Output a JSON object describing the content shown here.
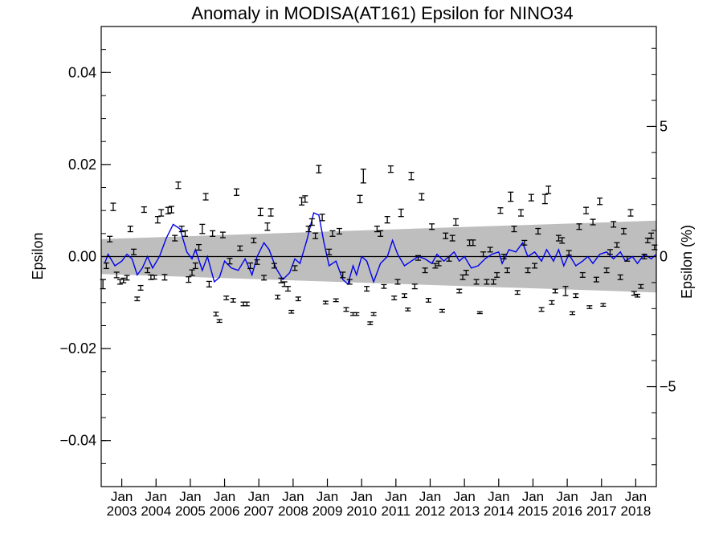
{
  "chart_data": {
    "type": "scatter",
    "title": "Anomaly in MODISA(AT161) Epsilon for NINO34",
    "ylabel": "Epsilon",
    "ylabel_right": "Epsilon (%)",
    "ylim": [
      -0.05,
      0.05
    ],
    "ylim_right": [
      -8.84,
      8.84
    ],
    "yticks": [
      "0.04",
      "0.02",
      "0.00",
      "−0.02",
      "−0.04"
    ],
    "yticks_right": [
      "5",
      "0",
      "−5"
    ],
    "xlim": [
      2002.4,
      2018.6
    ],
    "xticks_month": "Jan",
    "xticks_year": [
      "2003",
      "2004",
      "2005",
      "2006",
      "2007",
      "2008",
      "2009",
      "2010",
      "2011",
      "2012",
      "2013",
      "2014",
      "2015",
      "2016",
      "2017",
      "2018"
    ],
    "zero_line": true,
    "band": {
      "color": "#bebebe",
      "upper": [
        [
          2002.4,
          0.0038
        ],
        [
          2018.6,
          0.0078
        ]
      ],
      "lower": [
        [
          2002.4,
          -0.0038
        ],
        [
          2018.6,
          -0.0078
        ]
      ]
    },
    "smooth_series": {
      "color": "#0000ee",
      "points": [
        [
          2002.5,
          -0.0015
        ],
        [
          2002.6,
          0.0005
        ],
        [
          2002.8,
          -0.002
        ],
        [
          2003.0,
          -0.001
        ],
        [
          2003.15,
          0.0005
        ],
        [
          2003.3,
          -0.0005
        ],
        [
          2003.45,
          -0.004
        ],
        [
          2003.6,
          -0.0025
        ],
        [
          2003.75,
          0.0
        ],
        [
          2003.9,
          -0.0025
        ],
        [
          2004.1,
          0.0
        ],
        [
          2004.3,
          0.004
        ],
        [
          2004.5,
          0.007
        ],
        [
          2004.7,
          0.006
        ],
        [
          2004.9,
          0.001
        ],
        [
          2005.05,
          -0.0005
        ],
        [
          2005.15,
          0.0015
        ],
        [
          2005.35,
          -0.003
        ],
        [
          2005.5,
          0.0
        ],
        [
          2005.7,
          -0.0055
        ],
        [
          2005.85,
          -0.0045
        ],
        [
          2006.0,
          -0.001
        ],
        [
          2006.2,
          -0.0025
        ],
        [
          2006.4,
          -0.003
        ],
        [
          2006.6,
          -0.0005
        ],
        [
          2006.8,
          -0.004
        ],
        [
          2006.95,
          0.0
        ],
        [
          2007.15,
          0.003
        ],
        [
          2007.3,
          0.0015
        ],
        [
          2007.5,
          -0.0025
        ],
        [
          2007.7,
          -0.005
        ],
        [
          2007.9,
          -0.0035
        ],
        [
          2008.05,
          -0.0005
        ],
        [
          2008.2,
          -0.0015
        ],
        [
          2008.4,
          0.0035
        ],
        [
          2008.6,
          0.0095
        ],
        [
          2008.75,
          0.009
        ],
        [
          2008.9,
          0.003
        ],
        [
          2009.05,
          -0.002
        ],
        [
          2009.25,
          -0.001
        ],
        [
          2009.45,
          -0.005
        ],
        [
          2009.6,
          -0.006
        ],
        [
          2009.75,
          -0.002
        ],
        [
          2009.85,
          -0.004
        ],
        [
          2010.0,
          0.0
        ],
        [
          2010.15,
          -0.001
        ],
        [
          2010.35,
          -0.0055
        ],
        [
          2010.55,
          -0.0015
        ],
        [
          2010.75,
          0.0
        ],
        [
          2010.9,
          0.0035
        ],
        [
          2011.05,
          0.0005
        ],
        [
          2011.25,
          -0.002
        ],
        [
          2011.45,
          -0.001
        ],
        [
          2011.65,
          0.0
        ],
        [
          2011.85,
          -0.0005
        ],
        [
          2012.05,
          -0.0015
        ],
        [
          2012.2,
          0.0005
        ],
        [
          2012.4,
          -0.001
        ],
        [
          2012.55,
          0.0
        ],
        [
          2012.7,
          0.001
        ],
        [
          2012.85,
          -0.001
        ],
        [
          2013.0,
          0.0
        ],
        [
          2013.2,
          -0.0025
        ],
        [
          2013.4,
          -0.002
        ],
        [
          2013.6,
          -0.0005
        ],
        [
          2013.8,
          0.0005
        ],
        [
          2014.0,
          0.001
        ],
        [
          2014.1,
          -0.0015
        ],
        [
          2014.3,
          0.0015
        ],
        [
          2014.5,
          0.001
        ],
        [
          2014.7,
          0.003
        ],
        [
          2014.85,
          0.0
        ],
        [
          2015.05,
          0.001
        ],
        [
          2015.25,
          -0.001
        ],
        [
          2015.4,
          0.0015
        ],
        [
          2015.6,
          -0.001
        ],
        [
          2015.75,
          0.0015
        ],
        [
          2015.9,
          -0.002
        ],
        [
          2016.05,
          0.0005
        ],
        [
          2016.25,
          -0.002
        ],
        [
          2016.45,
          -0.001
        ],
        [
          2016.6,
          0.0
        ],
        [
          2016.75,
          -0.0015
        ],
        [
          2016.95,
          0.0005
        ],
        [
          2017.15,
          0.001
        ],
        [
          2017.35,
          -0.0005
        ],
        [
          2017.55,
          0.001
        ],
        [
          2017.7,
          -0.001
        ],
        [
          2017.9,
          0.0
        ],
        [
          2018.05,
          -0.0015
        ],
        [
          2018.25,
          0.0005
        ],
        [
          2018.45,
          -0.0005
        ],
        [
          2018.6,
          0.0005
        ]
      ]
    },
    "errorbar_series": {
      "color": "#000000",
      "points": [
        [
          2002.45,
          -0.006,
          0.001
        ],
        [
          2002.55,
          -0.002,
          0.0006
        ],
        [
          2002.65,
          0.0038,
          0.0006
        ],
        [
          2002.75,
          0.0108,
          0.0008
        ],
        [
          2002.85,
          -0.004,
          0.0006
        ],
        [
          2002.95,
          -0.0055,
          0.0005
        ],
        [
          2003.05,
          -0.0052,
          0.0005
        ],
        [
          2003.15,
          -0.0046,
          0.0005
        ],
        [
          2003.25,
          0.006,
          0.0006
        ],
        [
          2003.35,
          0.001,
          0.0006
        ],
        [
          2003.45,
          -0.0092,
          0.0004
        ],
        [
          2003.55,
          -0.0068,
          0.0005
        ],
        [
          2003.65,
          0.0102,
          0.0006
        ],
        [
          2003.75,
          -0.003,
          0.0005
        ],
        [
          2003.85,
          -0.0045,
          0.0005
        ],
        [
          2003.95,
          -0.0045,
          0.0004
        ],
        [
          2004.05,
          0.008,
          0.0007
        ],
        [
          2004.15,
          0.0095,
          0.0007
        ],
        [
          2004.25,
          -0.0045,
          0.0006
        ],
        [
          2004.35,
          0.01,
          0.0007
        ],
        [
          2004.45,
          0.0102,
          0.0007
        ],
        [
          2004.55,
          0.004,
          0.0006
        ],
        [
          2004.65,
          0.0155,
          0.0007
        ],
        [
          2004.75,
          0.006,
          0.0006
        ],
        [
          2004.85,
          0.005,
          0.0006
        ],
        [
          2004.95,
          -0.005,
          0.0006
        ],
        [
          2005.05,
          -0.0035,
          0.0006
        ],
        [
          2005.15,
          -0.002,
          0.0006
        ],
        [
          2005.25,
          0.002,
          0.0006
        ],
        [
          2005.35,
          0.006,
          0.001
        ],
        [
          2005.45,
          0.013,
          0.0007
        ],
        [
          2005.55,
          -0.006,
          0.0006
        ],
        [
          2005.65,
          0.005,
          0.0006
        ],
        [
          2005.75,
          -0.0125,
          0.0004
        ],
        [
          2005.85,
          -0.014,
          0.0003
        ],
        [
          2005.95,
          0.0047,
          0.0006
        ],
        [
          2006.05,
          -0.009,
          0.0004
        ],
        [
          2006.15,
          -0.001,
          0.0006
        ],
        [
          2006.25,
          -0.0095,
          0.0004
        ],
        [
          2006.35,
          0.014,
          0.0007
        ],
        [
          2006.45,
          0.0018,
          0.0005
        ],
        [
          2006.55,
          -0.0103,
          0.0004
        ],
        [
          2006.65,
          -0.0103,
          0.0004
        ],
        [
          2006.75,
          -0.002,
          0.0006
        ],
        [
          2006.85,
          0.0035,
          0.0005
        ],
        [
          2006.95,
          -0.0012,
          0.0005
        ],
        [
          2007.05,
          0.0097,
          0.0008
        ],
        [
          2007.15,
          -0.0046,
          0.0005
        ],
        [
          2007.25,
          0.0065,
          0.0008
        ],
        [
          2007.35,
          0.0096,
          0.0008
        ],
        [
          2007.45,
          -0.002,
          0.0005
        ],
        [
          2007.55,
          -0.0088,
          0.0004
        ],
        [
          2007.65,
          -0.0052,
          0.0005
        ],
        [
          2007.75,
          -0.006,
          0.0005
        ],
        [
          2007.85,
          -0.007,
          0.0005
        ],
        [
          2007.95,
          -0.012,
          0.0003
        ],
        [
          2008.05,
          -0.0025,
          0.0005
        ],
        [
          2008.15,
          -0.0092,
          0.0004
        ],
        [
          2008.25,
          0.012,
          0.0008
        ],
        [
          2008.35,
          0.0125,
          0.0007
        ],
        [
          2008.45,
          0.006,
          0.0006
        ],
        [
          2008.55,
          0.0075,
          0.0007
        ],
        [
          2008.65,
          0.0045,
          0.0006
        ],
        [
          2008.75,
          0.019,
          0.0008
        ],
        [
          2008.85,
          0.0085,
          0.0007
        ],
        [
          2008.95,
          -0.01,
          0.0003
        ],
        [
          2009.05,
          0.001,
          0.0006
        ],
        [
          2009.15,
          0.005,
          0.0006
        ],
        [
          2009.25,
          -0.0095,
          0.0003
        ],
        [
          2009.35,
          0.0055,
          0.0006
        ],
        [
          2009.45,
          -0.004,
          0.0006
        ],
        [
          2009.55,
          -0.0115,
          0.0004
        ],
        [
          2009.65,
          -0.0055,
          0.0005
        ],
        [
          2009.75,
          -0.0125,
          0.0003
        ],
        [
          2009.85,
          -0.0125,
          0.0003
        ],
        [
          2009.95,
          0.0125,
          0.0008
        ],
        [
          2010.05,
          0.0175,
          0.0015
        ],
        [
          2010.15,
          -0.007,
          0.0005
        ],
        [
          2010.25,
          -0.0145,
          0.0003
        ],
        [
          2010.35,
          -0.0125,
          0.0003
        ],
        [
          2010.45,
          0.006,
          0.0006
        ],
        [
          2010.55,
          0.005,
          0.0006
        ],
        [
          2010.65,
          -0.0065,
          0.0004
        ],
        [
          2010.75,
          0.008,
          0.0007
        ],
        [
          2010.85,
          0.019,
          0.0007
        ],
        [
          2010.95,
          -0.009,
          0.0004
        ],
        [
          2011.05,
          -0.0055,
          0.0005
        ],
        [
          2011.15,
          0.0095,
          0.0008
        ],
        [
          2011.25,
          -0.0085,
          0.0004
        ],
        [
          2011.35,
          -0.0115,
          0.0003
        ],
        [
          2011.45,
          0.0175,
          0.0008
        ],
        [
          2011.55,
          -0.0065,
          0.0005
        ],
        [
          2011.65,
          -0.0003,
          0.0005
        ],
        [
          2011.75,
          0.013,
          0.0007
        ],
        [
          2011.85,
          -0.003,
          0.0005
        ],
        [
          2011.95,
          -0.0095,
          0.0004
        ],
        [
          2012.05,
          0.0065,
          0.0006
        ],
        [
          2012.15,
          -0.002,
          0.0005
        ],
        [
          2012.25,
          -0.0015,
          0.0005
        ],
        [
          2012.35,
          -0.0118,
          0.0003
        ],
        [
          2012.45,
          0.0045,
          0.0006
        ],
        [
          2012.55,
          -0.0005,
          0.0005
        ],
        [
          2012.65,
          0.004,
          0.0006
        ],
        [
          2012.75,
          0.0075,
          0.0007
        ],
        [
          2012.85,
          -0.0075,
          0.0004
        ],
        [
          2012.95,
          -0.0045,
          0.0005
        ],
        [
          2013.05,
          -0.0035,
          0.0005
        ],
        [
          2013.15,
          0.003,
          0.0006
        ],
        [
          2013.25,
          0.003,
          0.0006
        ],
        [
          2013.35,
          -0.0055,
          0.0005
        ],
        [
          2013.45,
          -0.0122,
          0.0002
        ],
        [
          2013.55,
          0.0005,
          0.0005
        ],
        [
          2013.65,
          -0.0055,
          0.0005
        ],
        [
          2013.75,
          0.0015,
          0.0005
        ],
        [
          2013.85,
          -0.0055,
          0.0005
        ],
        [
          2013.95,
          -0.004,
          0.0005
        ],
        [
          2014.05,
          0.01,
          0.0006
        ],
        [
          2014.15,
          0.0,
          0.0005
        ],
        [
          2014.25,
          -0.003,
          0.0005
        ],
        [
          2014.35,
          0.013,
          0.001
        ],
        [
          2014.45,
          0.006,
          0.0006
        ],
        [
          2014.55,
          -0.0078,
          0.0004
        ],
        [
          2014.65,
          0.0095,
          0.0007
        ],
        [
          2014.75,
          0.003,
          0.0005
        ],
        [
          2014.85,
          -0.003,
          0.0005
        ],
        [
          2014.95,
          0.0128,
          0.0007
        ],
        [
          2015.05,
          -0.002,
          0.0005
        ],
        [
          2015.15,
          0.0055,
          0.0006
        ],
        [
          2015.25,
          -0.0115,
          0.0004
        ],
        [
          2015.35,
          0.0125,
          0.001
        ],
        [
          2015.45,
          0.0145,
          0.0008
        ],
        [
          2015.55,
          -0.01,
          0.0004
        ],
        [
          2015.65,
          -0.0075,
          0.0004
        ],
        [
          2015.75,
          0.004,
          0.0006
        ],
        [
          2015.85,
          0.0035,
          0.0006
        ],
        [
          2015.95,
          -0.0075,
          0.001
        ],
        [
          2016.05,
          0.0008,
          0.0005
        ],
        [
          2016.15,
          -0.0123,
          0.0003
        ],
        [
          2016.25,
          -0.0085,
          0.0004
        ],
        [
          2016.35,
          0.0065,
          0.0006
        ],
        [
          2016.45,
          -0.004,
          0.0005
        ],
        [
          2016.55,
          0.01,
          0.0007
        ],
        [
          2016.65,
          -0.011,
          0.0003
        ],
        [
          2016.75,
          0.0075,
          0.0006
        ],
        [
          2016.85,
          -0.005,
          0.0005
        ],
        [
          2016.95,
          0.012,
          0.0007
        ],
        [
          2017.05,
          -0.0105,
          0.0003
        ],
        [
          2017.15,
          -0.003,
          0.0005
        ],
        [
          2017.25,
          0.001,
          0.0005
        ],
        [
          2017.35,
          0.007,
          0.0006
        ],
        [
          2017.45,
          0.0025,
          0.0005
        ],
        [
          2017.55,
          -0.0045,
          0.0005
        ],
        [
          2017.65,
          0.0055,
          0.0006
        ],
        [
          2017.75,
          -0.0005,
          0.0005
        ],
        [
          2017.85,
          0.0095,
          0.0007
        ],
        [
          2017.95,
          -0.008,
          0.0004
        ],
        [
          2018.05,
          -0.0085,
          0.0003
        ],
        [
          2018.15,
          -0.0065,
          0.0004
        ],
        [
          2018.25,
          0.0,
          0.0005
        ],
        [
          2018.35,
          0.0035,
          0.0005
        ],
        [
          2018.45,
          0.0045,
          0.0006
        ],
        [
          2018.55,
          0.002,
          0.0005
        ]
      ]
    },
    "grid": false,
    "legend": "none"
  }
}
